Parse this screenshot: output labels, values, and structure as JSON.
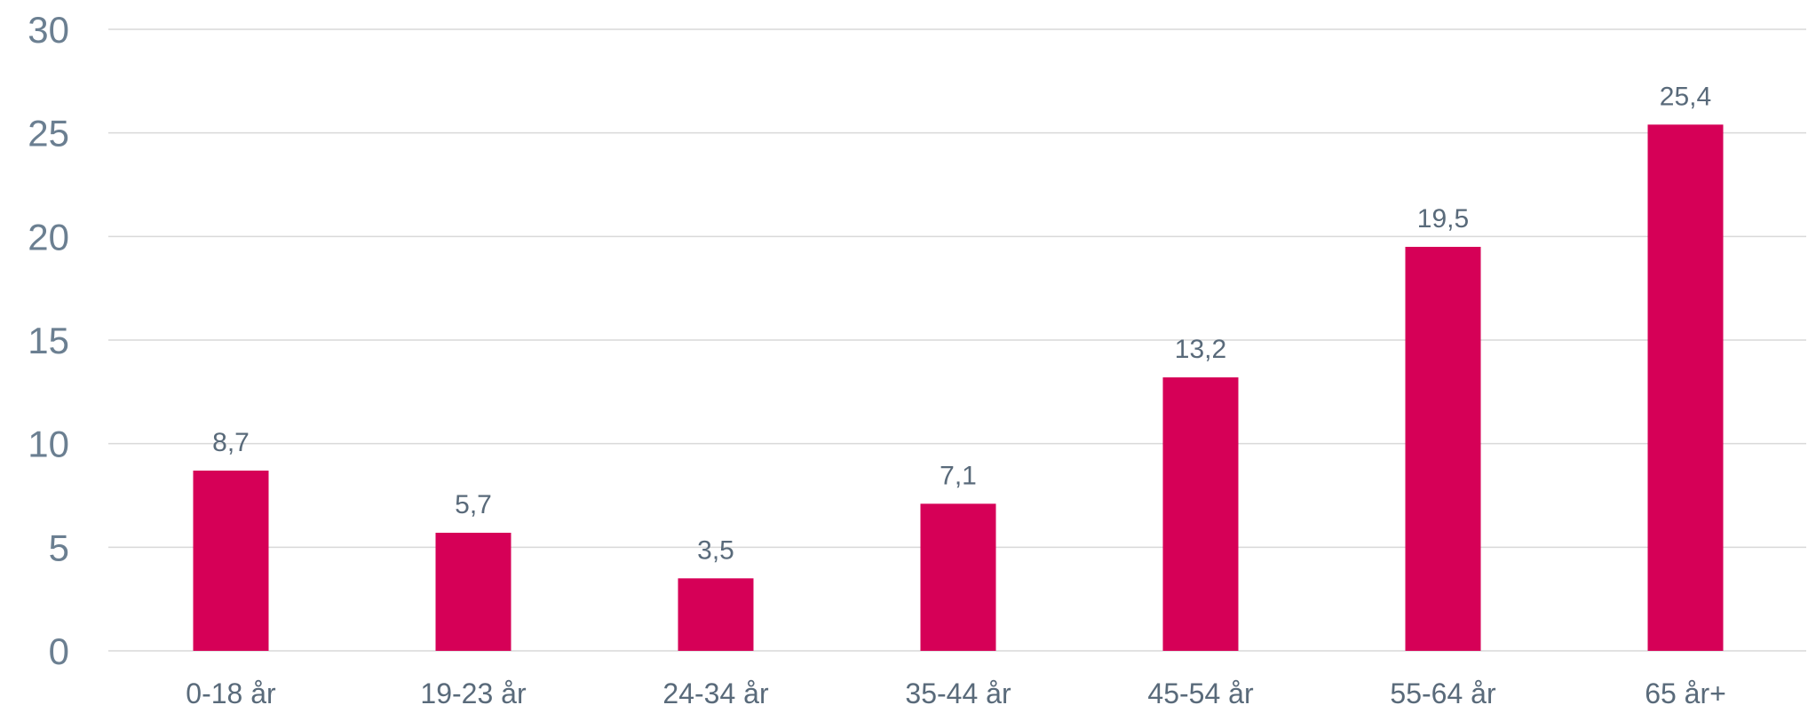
{
  "chart_data": {
    "type": "bar",
    "title": "",
    "xlabel": "",
    "ylabel": "",
    "categories": [
      "0-18 år",
      "19-23 år",
      "24-34 år",
      "35-44 år",
      "45-54 år",
      "55-64 år",
      "65 år+"
    ],
    "values": [
      8.7,
      5.7,
      3.5,
      7.1,
      13.2,
      19.5,
      25.4
    ],
    "data_labels": [
      "8,7",
      "5,7",
      "3,5",
      "7,1",
      "13,2",
      "19,5",
      "25,4"
    ],
    "ylim": [
      0,
      30
    ],
    "yticks": [
      0,
      5,
      10,
      15,
      20,
      25,
      30
    ],
    "ytick_labels": [
      "0",
      "5",
      "10",
      "15",
      "20",
      "25",
      "30"
    ],
    "grid": true,
    "legend": "none",
    "colors": {
      "bar": "#d60057",
      "grid": "#d9d9d9",
      "axis_text": "#6b7f91",
      "label_text": "#596a7a"
    }
  }
}
